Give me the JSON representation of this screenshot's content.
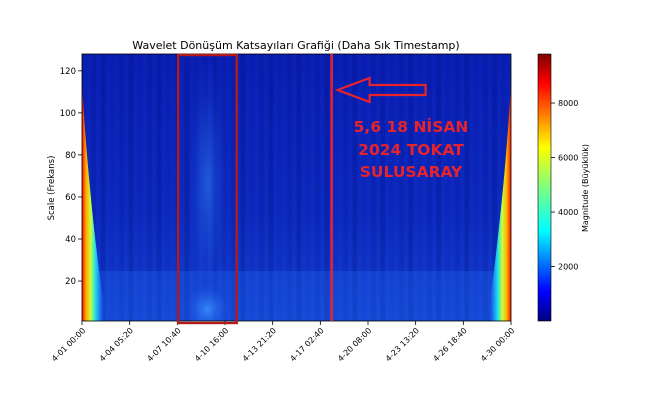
{
  "chart_data": {
    "type": "heatmap",
    "title": "Wavelet Dönüşüm Katsayıları Grafiği (Daha Sık Timestamp)",
    "xlabel": "",
    "ylabel": "Scale (Frekans)",
    "x_tick_labels": [
      "4-01 00:00",
      "4-04 05:20",
      "4-07 10:40",
      "4-10 16:00",
      "4-13 21:20",
      "4-17 02:40",
      "4-20 08:00",
      "4-23 13:20",
      "4-26 18:40",
      "4-30 00:00"
    ],
    "x_tick_hours": [
      0,
      77.33,
      154.67,
      232,
      309.33,
      386.67,
      464,
      541.33,
      618.67,
      696
    ],
    "xlim_hours": [
      0,
      696
    ],
    "y_ticks": [
      20,
      40,
      60,
      80,
      100,
      120
    ],
    "ylim": [
      1,
      128
    ],
    "colorbar": {
      "label": "Magnitude (Büyüklük)",
      "ticks": [
        2000,
        4000,
        6000,
        8000
      ],
      "range": [
        0,
        9800
      ],
      "colormap": "jet"
    },
    "highlight_box_hours": [
      156,
      251
    ],
    "event_line_hours": [
      405
    ],
    "annotation_lines": [
      "5,6 18 NİSAN",
      "2024 TOKAT",
      "SULUSARAY"
    ],
    "colors": {
      "box": "#b31b1b",
      "event_line": "#e8232a",
      "arrow": "#e8232a",
      "annotation": "#e8232a"
    },
    "grid": false
  }
}
